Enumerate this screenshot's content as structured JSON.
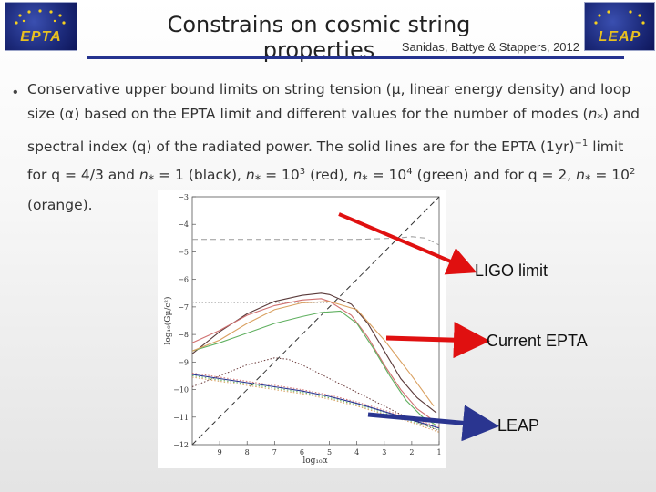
{
  "slide": {
    "title": "Constrains on cosmic string properties",
    "subtitle": "Sanidas, Battye & Stappers, 2012",
    "logos": {
      "left": "EPTA",
      "right": "LEAP"
    },
    "bullet": {
      "seg1": "Conservative upper bound limits on string tension (μ, linear energy density) and loop size (α) based on the EPTA limit and different values for the number of modes (",
      "nstar": "n",
      "star": "*",
      "seg2": ") and spectral index (q) of the radiated power. The solid lines are for the EPTA (1yr)",
      "sup_minus1": "−1",
      "seg3": " limit for q = 4/3 and ",
      "seg4": " = 1 (black), ",
      "seg5": " = 10",
      "sup3": "3",
      "seg6": " (red), ",
      "seg7": " = 10",
      "sup4": "4",
      "seg8": " (green) and for q = 2, ",
      "seg9": " = 10",
      "sup2": "2",
      "seg10": " (orange)."
    },
    "annotations": {
      "ligo": "LIGO limit",
      "epta": "Current EPTA",
      "leap": "LEAP"
    },
    "colors": {
      "rule": "#25338f",
      "arrow_red": "#e01010",
      "arrow_blue": "#2a3590",
      "logo_text": "#e8c020"
    }
  },
  "chart_data": {
    "type": "line",
    "xlabel": "log₁₀α",
    "ylabel": "log₁₀(Gμ/c²)",
    "xlim": [
      10,
      1
    ],
    "ylim": [
      -12,
      -3
    ],
    "x_ticks": [
      9,
      8,
      7,
      6,
      5,
      4,
      3,
      2,
      1
    ],
    "y_ticks": [
      -3,
      -4,
      -5,
      -6,
      -7,
      -8,
      -9,
      -10,
      -11,
      -12
    ],
    "series": [
      {
        "color": "#999999",
        "style": "dashed",
        "x": [
          10,
          8,
          6,
          4,
          2.5,
          2,
          1.5,
          1
        ],
        "y": [
          -4.55,
          -4.55,
          -4.55,
          -4.55,
          -4.5,
          -4.45,
          -4.5,
          -4.75
        ]
      },
      {
        "color": "#333333",
        "style": "dashed",
        "x": [
          10,
          1
        ],
        "y": [
          -12,
          -3
        ]
      },
      {
        "color": "#bbbbbb",
        "style": "dotted",
        "x": [
          10,
          5
        ],
        "y": [
          -6.85,
          -6.85
        ]
      },
      {
        "color": "#5a3a3a",
        "style": "solid",
        "x": [
          10,
          9,
          8,
          7,
          6,
          5.3,
          5,
          4.2,
          3.6,
          3.0,
          2.4,
          1.8,
          1.1
        ],
        "y": [
          -8.7,
          -7.9,
          -7.25,
          -6.8,
          -6.58,
          -6.5,
          -6.55,
          -6.9,
          -7.6,
          -8.6,
          -9.6,
          -10.3,
          -10.85
        ]
      },
      {
        "color": "#d07070",
        "style": "solid",
        "x": [
          10,
          9,
          8,
          7,
          6,
          5.3,
          5,
          4.2,
          3.6,
          3.0,
          2.4,
          1.8,
          1.1
        ],
        "y": [
          -8.3,
          -7.85,
          -7.3,
          -6.95,
          -6.75,
          -6.7,
          -6.8,
          -7.3,
          -8.1,
          -9.1,
          -10.0,
          -10.7,
          -11.2
        ]
      },
      {
        "color": "#60b060",
        "style": "solid",
        "x": [
          10,
          9,
          8,
          7,
          6,
          5.3,
          4.6,
          4.0,
          3.4,
          2.8,
          2.2,
          1.6,
          1.1
        ],
        "y": [
          -8.6,
          -8.3,
          -7.95,
          -7.6,
          -7.35,
          -7.2,
          -7.15,
          -7.6,
          -8.5,
          -9.5,
          -10.4,
          -11.0,
          -11.3
        ]
      },
      {
        "color": "#d9a060",
        "style": "solid",
        "x": [
          10,
          9,
          8,
          7,
          6,
          5,
          4,
          3,
          2,
          1.2
        ],
        "y": [
          -8.6,
          -8.2,
          -7.6,
          -7.1,
          -6.85,
          -6.8,
          -7.1,
          -8.2,
          -9.5,
          -10.6
        ]
      },
      {
        "color": "#6a3a3a",
        "style": "dotted",
        "x": [
          10,
          9,
          8,
          7,
          6.5,
          6,
          5,
          4,
          3,
          2,
          1
        ],
        "y": [
          -9.9,
          -9.5,
          -9.1,
          -8.85,
          -8.9,
          -9.1,
          -9.6,
          -10.1,
          -10.6,
          -11.1,
          -11.5
        ]
      },
      {
        "color": "#d07070",
        "style": "dotted",
        "x": [
          10,
          9,
          8,
          7,
          6,
          5,
          4,
          3,
          2,
          1
        ],
        "y": [
          -9.4,
          -9.55,
          -9.7,
          -9.85,
          -10.0,
          -10.2,
          -10.45,
          -10.75,
          -11.05,
          -11.35
        ]
      },
      {
        "color": "#60b060",
        "style": "dotted",
        "x": [
          10,
          9,
          8,
          7,
          6,
          5,
          4,
          3,
          2,
          1
        ],
        "y": [
          -9.5,
          -9.65,
          -9.8,
          -9.95,
          -10.1,
          -10.3,
          -10.55,
          -10.85,
          -11.15,
          -11.45
        ]
      },
      {
        "color": "#d9a060",
        "style": "dotted",
        "x": [
          10,
          9,
          8,
          7,
          6,
          5,
          4,
          3,
          2,
          1
        ],
        "y": [
          -9.55,
          -9.7,
          -9.85,
          -10.0,
          -10.15,
          -10.35,
          -10.6,
          -10.9,
          -11.2,
          -11.55
        ]
      },
      {
        "color": "#2a3590",
        "style": "solid",
        "x": [
          10,
          9,
          8,
          7,
          6,
          5,
          4,
          3,
          2,
          1
        ],
        "y": [
          -9.45,
          -9.6,
          -9.75,
          -9.9,
          -10.05,
          -10.25,
          -10.5,
          -10.8,
          -11.1,
          -11.4
        ]
      }
    ],
    "grid": false,
    "legend": "none"
  }
}
